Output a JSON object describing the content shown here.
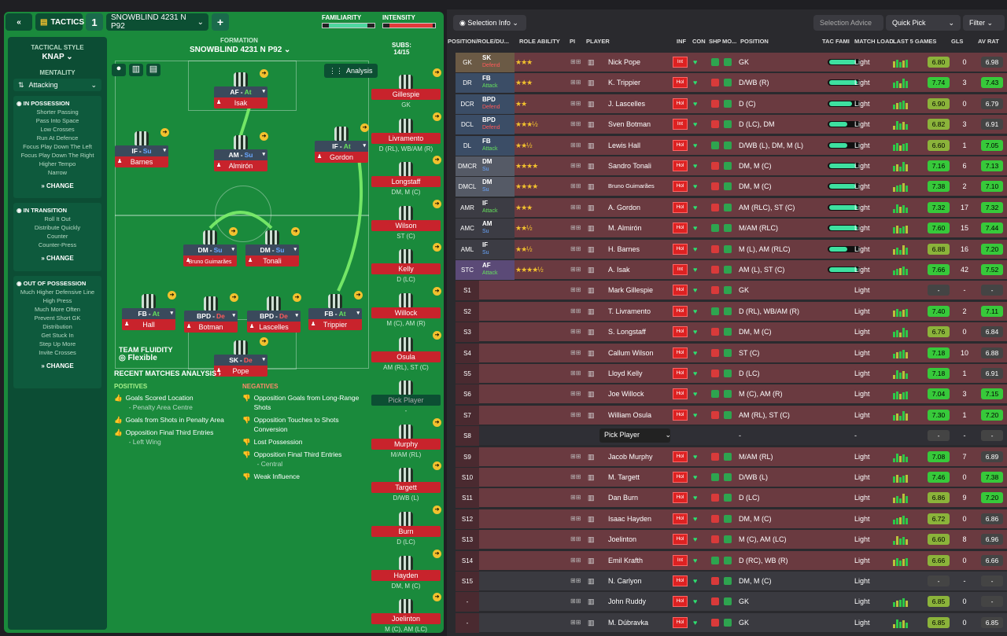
{
  "header": {
    "tactics_label": "TACTICS",
    "slot_number": "1",
    "tactic_name": "SNOWBLIND 4231 N P92",
    "familiarity_label": "FAMILIARITY",
    "intensity_label": "INTENSITY",
    "familiarity_level": 0.85,
    "intensity_level": 0.95
  },
  "left_panel": {
    "tactical_style_label": "TACTICAL STYLE",
    "tactical_style": "KNAP",
    "mentality_label": "MENTALITY",
    "mentality": "Attacking",
    "in_possession_title": "IN POSSESSION",
    "in_possession": [
      "Shorter Passing",
      "Pass Into Space",
      "Low Crosses",
      "Run At Defence",
      "Focus Play Down The Left",
      "Focus Play Down The Right",
      "Higher Tempo",
      "Narrow"
    ],
    "in_transition_title": "IN TRANSITION",
    "in_transition": [
      "Roll It Out",
      "Distribute Quickly",
      "Counter",
      "Counter-Press"
    ],
    "out_of_possession_title": "OUT OF POSSESSION",
    "out_of_possession": [
      "Much Higher Defensive Line",
      "High Press",
      "Much More Often",
      "Prevent Short GK",
      "Distribution",
      "Get Stuck In",
      "Step Up More",
      "Invite Crosses"
    ],
    "change_label": "CHANGE"
  },
  "formation": {
    "label": "FORMATION",
    "name": "SNOWBLIND 4231 N P92",
    "analysis_label": "Analysis",
    "subs_label": "SUBS:",
    "subs_count": "14/15",
    "team_fluidity_label": "TEAM FLUIDITY",
    "team_fluidity": "Flexible",
    "players": [
      {
        "role": "AF",
        "duty": "At",
        "name": "Isak"
      },
      {
        "role": "IF",
        "duty": "Su",
        "name": "Barnes"
      },
      {
        "role": "AM",
        "duty": "Su",
        "name": "Almirón"
      },
      {
        "role": "IF",
        "duty": "At",
        "name": "Gordon"
      },
      {
        "role": "DM",
        "duty": "Su",
        "name": "Bruno Guimarães"
      },
      {
        "role": "DM",
        "duty": "Su",
        "name": "Tonali"
      },
      {
        "role": "FB",
        "duty": "At",
        "name": "Hall"
      },
      {
        "role": "BPD",
        "duty": "De",
        "name": "Botman"
      },
      {
        "role": "BPD",
        "duty": "De",
        "name": "Lascelles"
      },
      {
        "role": "FB",
        "duty": "At",
        "name": "Trippier"
      },
      {
        "role": "SK",
        "duty": "De",
        "name": "Pope"
      }
    ]
  },
  "subs": [
    {
      "name": "Gillespie",
      "pos": "GK"
    },
    {
      "name": "Livramento",
      "pos": "D (RL), WB/AM (R)"
    },
    {
      "name": "Longstaff",
      "pos": "DM, M (C)"
    },
    {
      "name": "Wilson",
      "pos": "ST (C)"
    },
    {
      "name": "Kelly",
      "pos": "D (LC)"
    },
    {
      "name": "Willock",
      "pos": "M (C), AM (R)"
    },
    {
      "name": "Osula",
      "pos": "AM (RL), ST (C)"
    },
    {
      "name": "Pick Player",
      "pos": "-"
    },
    {
      "name": "Murphy",
      "pos": "M/AM (RL)"
    },
    {
      "name": "Targett",
      "pos": "D/WB (L)"
    },
    {
      "name": "Burn",
      "pos": "D (LC)"
    },
    {
      "name": "Hayden",
      "pos": "DM, M (C)"
    },
    {
      "name": "Joelinton",
      "pos": "M (C), AM (LC)"
    }
  ],
  "analysis": {
    "title": "RECENT MATCHES ANALYSIS",
    "positives_title": "POSITIVES",
    "positives": [
      {
        "text": "Goals Scored Location",
        "sub": "- Penalty Area Centre"
      },
      {
        "text": "Goals from Shots in Penalty Area",
        "sub": ""
      },
      {
        "text": "Opposition Final Third Entries",
        "sub": "- Left Wing"
      }
    ],
    "negatives_title": "NEGATIVES",
    "negatives": [
      {
        "text": "Opposition Goals from Long-Range Shots",
        "sub": ""
      },
      {
        "text": "Opposition Touches to Shots Conversion",
        "sub": ""
      },
      {
        "text": "Lost Possession",
        "sub": ""
      },
      {
        "text": "Opposition Final Third Entries",
        "sub": "- Central"
      },
      {
        "text": "Weak Influence",
        "sub": ""
      }
    ]
  },
  "right_toolbar": {
    "selection_info": "Selection Info",
    "selection_advice": "Selection Advice",
    "quick_pick": "Quick Pick",
    "filter": "Filter"
  },
  "table_headers": [
    "POSITION/ROLE/DU...",
    "ROLE ABILITY",
    "PI",
    "PLAYER",
    "INF",
    "CON",
    "SHP",
    "MO...",
    "POSITION",
    "TAC FAMI",
    "MATCH LOAD",
    "LAST 5 GAMES",
    "GLS",
    "AV RAT"
  ],
  "rows": [
    {
      "slot": "GK",
      "role": "SK",
      "duty": "Defend",
      "stars": "★★★",
      "player": "Nick Pope",
      "inf": "Int",
      "position": "GK",
      "load": "Light",
      "rating": "6.80",
      "gls": "0",
      "av": "6.98",
      "tac": 0.9
    },
    {
      "slot": "DR",
      "role": "FB",
      "duty": "Attack",
      "stars": "★★★",
      "player": "K. Trippier",
      "inf": "Hol",
      "position": "D/WB (R)",
      "load": "Light",
      "rating": "7.74",
      "gls": "3",
      "av": "7.43",
      "tac": 0.95
    },
    {
      "slot": "DCR",
      "role": "BPD",
      "duty": "Defend",
      "stars": "★★",
      "player": "J. Lascelles",
      "inf": "Hol",
      "position": "D (C)",
      "load": "Light",
      "rating": "6.90",
      "gls": "0",
      "av": "6.79",
      "tac": 0.75
    },
    {
      "slot": "DCL",
      "role": "BPD",
      "duty": "Defend",
      "stars": "★★★½",
      "player": "Sven Botman",
      "inf": "Int",
      "position": "D (LC), DM",
      "load": "Light",
      "rating": "6.82",
      "gls": "3",
      "av": "6.91",
      "tac": 0.6
    },
    {
      "slot": "DL",
      "role": "FB",
      "duty": "Attack",
      "stars": "★★½",
      "player": "Lewis Hall",
      "inf": "Hol",
      "position": "D/WB (L), DM, M (L)",
      "load": "Light",
      "rating": "6.60",
      "gls": "1",
      "av": "7.05",
      "tac": 0.6
    },
    {
      "slot": "DMCR",
      "role": "DM",
      "duty": "Su",
      "stars": "★★★★",
      "player": "Sandro Tonali",
      "inf": "Hol",
      "position": "DM, M (C)",
      "load": "Light",
      "rating": "7.16",
      "gls": "6",
      "av": "7.13",
      "tac": 0.9
    },
    {
      "slot": "DMCL",
      "role": "DM",
      "duty": "Su",
      "stars": "★★★★",
      "player": "Bruno Guimarães",
      "inf": "Hol",
      "position": "DM, M (C)",
      "load": "Light",
      "rating": "7.38",
      "gls": "2",
      "av": "7.10",
      "tac": 0.9
    },
    {
      "slot": "AMR",
      "role": "IF",
      "duty": "Attack",
      "stars": "★★★",
      "player": "A. Gordon",
      "inf": "Hol",
      "position": "AM (RLC), ST (C)",
      "load": "Light",
      "rating": "7.32",
      "gls": "17",
      "av": "7.32",
      "tac": 0.95
    },
    {
      "slot": "AMC",
      "role": "AM",
      "duty": "Su",
      "stars": "★★½",
      "player": "M. Almirón",
      "inf": "Hol",
      "position": "M/AM (RLC)",
      "load": "Light",
      "rating": "7.60",
      "gls": "15",
      "av": "7.44",
      "tac": 0.95
    },
    {
      "slot": "AML",
      "role": "IF",
      "duty": "Su",
      "stars": "★★½",
      "player": "H. Barnes",
      "inf": "Hol",
      "position": "M (L), AM (RLC)",
      "load": "Light",
      "rating": "6.88",
      "gls": "16",
      "av": "7.20",
      "tac": 0.6
    },
    {
      "slot": "STC",
      "role": "AF",
      "duty": "Attack",
      "stars": "★★★★½",
      "player": "A. Isak",
      "inf": "Int",
      "position": "AM (L), ST (C)",
      "load": "Light",
      "rating": "7.66",
      "gls": "42",
      "av": "7.52",
      "tac": 0.95
    },
    {
      "slot": "S1",
      "role": "",
      "duty": "",
      "stars": "",
      "player": "Mark Gillespie",
      "inf": "Hol",
      "position": "GK",
      "load": "Light",
      "rating": "-",
      "gls": "-",
      "av": "-",
      "tac": 0
    },
    {
      "slot": "S2",
      "role": "",
      "duty": "",
      "stars": "",
      "player": "T. Livramento",
      "inf": "Hol",
      "position": "D (RL), WB/AM (R)",
      "load": "Light",
      "rating": "7.40",
      "gls": "2",
      "av": "7.11",
      "tac": 0
    },
    {
      "slot": "S3",
      "role": "",
      "duty": "",
      "stars": "",
      "player": "S. Longstaff",
      "inf": "Hol",
      "position": "DM, M (C)",
      "load": "Light",
      "rating": "6.76",
      "gls": "0",
      "av": "6.84",
      "tac": 0
    },
    {
      "slot": "S4",
      "role": "",
      "duty": "",
      "stars": "",
      "player": "Callum Wilson",
      "inf": "Hol",
      "position": "ST (C)",
      "load": "Light",
      "rating": "7.18",
      "gls": "10",
      "av": "6.88",
      "tac": 0
    },
    {
      "slot": "S5",
      "role": "",
      "duty": "",
      "stars": "",
      "player": "Lloyd Kelly",
      "inf": "Hol",
      "position": "D (LC)",
      "load": "Light",
      "rating": "7.18",
      "gls": "1",
      "av": "6.91",
      "tac": 0
    },
    {
      "slot": "S6",
      "role": "",
      "duty": "",
      "stars": "",
      "player": "Joe Willock",
      "inf": "Hol",
      "position": "M (C), AM (R)",
      "load": "Light",
      "rating": "7.04",
      "gls": "3",
      "av": "7.15",
      "tac": 0
    },
    {
      "slot": "S7",
      "role": "",
      "duty": "",
      "stars": "",
      "player": "William Osula",
      "inf": "Hol",
      "position": "AM (RL), ST (C)",
      "load": "Light",
      "rating": "7.30",
      "gls": "1",
      "av": "7.20",
      "tac": 0
    },
    {
      "slot": "S8",
      "role": "",
      "duty": "",
      "stars": "",
      "player": "Pick Player",
      "inf": "",
      "position": "-",
      "load": "-",
      "rating": "-",
      "gls": "-",
      "av": "-",
      "tac": 0
    },
    {
      "slot": "S9",
      "role": "",
      "duty": "",
      "stars": "",
      "player": "Jacob Murphy",
      "inf": "Hol",
      "position": "M/AM (RL)",
      "load": "Light",
      "rating": "7.08",
      "gls": "7",
      "av": "6.89",
      "tac": 0
    },
    {
      "slot": "S10",
      "role": "",
      "duty": "",
      "stars": "",
      "player": "M. Targett",
      "inf": "Hol",
      "position": "D/WB (L)",
      "load": "Light",
      "rating": "7.46",
      "gls": "0",
      "av": "7.38",
      "tac": 0
    },
    {
      "slot": "S11",
      "role": "",
      "duty": "",
      "stars": "",
      "player": "Dan Burn",
      "inf": "Hol",
      "position": "D (LC)",
      "load": "Light",
      "rating": "6.86",
      "gls": "9",
      "av": "7.20",
      "tac": 0
    },
    {
      "slot": "S12",
      "role": "",
      "duty": "",
      "stars": "",
      "player": "Isaac Hayden",
      "inf": "Hol",
      "position": "DM, M (C)",
      "load": "Light",
      "rating": "6.72",
      "gls": "0",
      "av": "6.86",
      "tac": 0
    },
    {
      "slot": "S13",
      "role": "",
      "duty": "",
      "stars": "",
      "player": "Joelinton",
      "inf": "Hol",
      "position": "M (C), AM (LC)",
      "load": "Light",
      "rating": "6.60",
      "gls": "8",
      "av": "6.96",
      "tac": 0
    },
    {
      "slot": "S14",
      "role": "",
      "duty": "",
      "stars": "",
      "player": "Emil Krafth",
      "inf": "Int",
      "position": "D (RC), WB (R)",
      "load": "Light",
      "rating": "6.66",
      "gls": "0",
      "av": "6.66",
      "tac": 0
    },
    {
      "slot": "S15",
      "role": "",
      "duty": "",
      "stars": "",
      "player": "N. Carlyon",
      "inf": "Hol",
      "position": "DM, M (C)",
      "load": "Light",
      "rating": "-",
      "gls": "-",
      "av": "-",
      "tac": 0
    },
    {
      "slot": "-",
      "role": "",
      "duty": "",
      "stars": "",
      "player": "John Ruddy",
      "inf": "Hol",
      "position": "GK",
      "load": "Light",
      "rating": "6.85",
      "gls": "0",
      "av": "-",
      "tac": 0
    },
    {
      "slot": "-",
      "role": "",
      "duty": "",
      "stars": "",
      "player": "M. Dúbravka",
      "inf": "Hol",
      "position": "GK",
      "load": "Light",
      "rating": "6.85",
      "gls": "0",
      "av": "6.85",
      "tac": 0
    }
  ]
}
